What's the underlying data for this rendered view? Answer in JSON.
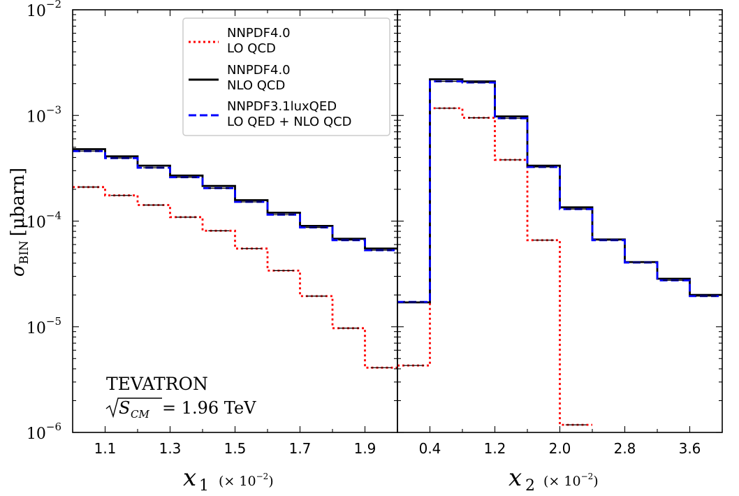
{
  "chart_data": [
    {
      "type": "line",
      "panel": "left",
      "xscale": "linear",
      "yscale": "log",
      "x_edges": [
        1.0,
        1.1,
        1.2,
        1.3,
        1.4,
        1.5,
        1.6,
        1.7,
        1.8,
        1.9,
        2.0
      ],
      "xlim": [
        1.0,
        2.0
      ],
      "ylim": [
        1e-06,
        0.01
      ],
      "xticks": [
        "1.1",
        "1.3",
        "1.5",
        "1.7",
        "1.9"
      ],
      "xtick_values": [
        1.1,
        1.3,
        1.5,
        1.7,
        1.9
      ],
      "xlabel": "x",
      "xlabel_sub": "1",
      "xlabel_scale": "(× 10",
      "xlabel_scale_exp": "−2",
      "xlabel_scale_close": ")",
      "ylabel": "σ",
      "ylabel_sub": "BIN",
      "ylabel_unit": "[μbarn]",
      "yticks": [
        {
          "value": 1e-06,
          "base": "10",
          "exp": "−6"
        },
        {
          "value": 1e-05,
          "base": "10",
          "exp": "−5"
        },
        {
          "value": 0.0001,
          "base": "10",
          "exp": "−4"
        },
        {
          "value": 0.001,
          "base": "10",
          "exp": "−3"
        },
        {
          "value": 0.01,
          "base": "10",
          "exp": "−2"
        }
      ],
      "series": [
        {
          "name": "NNPDF4.0 LO QCD",
          "style": "dotted",
          "color": "#ff0000",
          "values": [
            0.00021,
            0.000175,
            0.000142,
            0.000109,
            8.1e-05,
            5.5e-05,
            3.4e-05,
            1.95e-05,
            9.7e-06,
            4.1e-06
          ]
        },
        {
          "name": "NNPDF4.0 NLO QCD",
          "style": "solid",
          "color": "#000000",
          "values": [
            0.00048,
            0.00041,
            0.000335,
            0.00027,
            0.000215,
            0.000158,
            0.00012,
            9e-05,
            6.8e-05,
            5.5e-05
          ]
        },
        {
          "name": "NNPDF3.1luxQED LO QED + NLO QCD",
          "style": "dashed",
          "color": "#0000ff",
          "values": [
            0.00046,
            0.000395,
            0.00032,
            0.00026,
            0.000205,
            0.000152,
            0.000115,
            8.7e-05,
            6.6e-05,
            5.3e-05
          ]
        }
      ],
      "annotation": {
        "line1": "TEVATRON",
        "line2_sqrt": "S",
        "line2_sub": "CM",
        "line2_rest": " = 1.96 TeV"
      }
    },
    {
      "type": "line",
      "panel": "right",
      "xscale": "linear",
      "yscale": "log",
      "x_edges": [
        0.0,
        0.4,
        0.8,
        1.2,
        1.6,
        2.0,
        2.4,
        2.8,
        3.2,
        3.6,
        4.0
      ],
      "xlim": [
        0.0,
        4.0
      ],
      "ylim": [
        1e-06,
        0.01
      ],
      "xticks": [
        "0.4",
        "1.2",
        "2.0",
        "2.8",
        "3.6"
      ],
      "xtick_values": [
        0.4,
        1.2,
        2.0,
        2.8,
        3.6
      ],
      "xlabel": "x",
      "xlabel_sub": "2",
      "xlabel_scale": "(× 10",
      "xlabel_scale_exp": "−2",
      "xlabel_scale_close": ")",
      "series": [
        {
          "name": "NNPDF4.0 LO QCD",
          "style": "dotted",
          "color": "#ff0000",
          "values": [
            4.3e-06,
            0.00117,
            0.00095,
            0.00038,
            6.6e-05,
            1.18e-06
          ]
        },
        {
          "name": "NNPDF4.0 NLO QCD",
          "style": "solid",
          "color": "#000000",
          "values": [
            1.7e-05,
            0.0022,
            0.0021,
            0.00098,
            0.000335,
            0.000135,
            6.7e-05,
            4.1e-05,
            2.85e-05,
            2e-05
          ]
        },
        {
          "name": "NNPDF3.1luxQED LO QED + NLO QCD",
          "style": "dashed",
          "color": "#0000ff",
          "values": [
            1.72e-05,
            0.0021,
            0.00205,
            0.00094,
            0.000325,
            0.00013,
            6.6e-05,
            4.05e-05,
            2.75e-05,
            1.95e-05
          ]
        }
      ]
    }
  ],
  "legend": {
    "placement": "top-center of left panel",
    "entries": [
      {
        "line1": "NNPDF4.0",
        "line2": "LO QCD",
        "style": "dotted",
        "color": "#ff0000"
      },
      {
        "line1": "NNPDF4.0",
        "line2": "NLO QCD",
        "style": "solid",
        "color": "#000000"
      },
      {
        "line1": "NNPDF3.1luxQED",
        "line2": "LO QED + NLO QCD",
        "style": "dashed",
        "color": "#0000ff"
      }
    ]
  }
}
